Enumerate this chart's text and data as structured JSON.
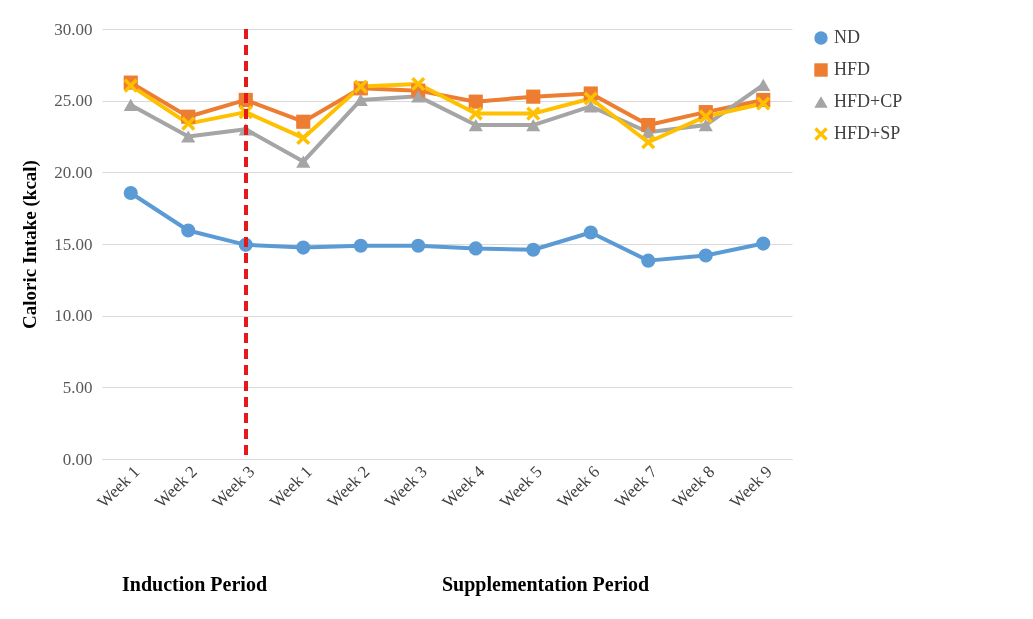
{
  "chart_data": {
    "type": "line",
    "ylabel": "Caloric Intake (kcal)",
    "categories": [
      "Week 1",
      "Week 2",
      "Week 3",
      "Week 1",
      "Week 2",
      "Week 3",
      "Week 4",
      "Week 5",
      "Week 6",
      "Week 7",
      "Week 8",
      "Week 9"
    ],
    "series": [
      {
        "name": "ND",
        "color": "#5b9bd5",
        "marker": "circle",
        "values": [
          18.56,
          15.94,
          14.94,
          14.75,
          14.88,
          14.88,
          14.69,
          14.6,
          15.8,
          13.84,
          14.2,
          15.03
        ]
      },
      {
        "name": "HFD",
        "color": "#ed7d31",
        "marker": "square",
        "values": [
          26.26,
          23.88,
          25.05,
          23.53,
          25.86,
          25.7,
          24.93,
          25.28,
          25.5,
          23.3,
          24.2,
          25.05
        ]
      },
      {
        "name": "HFD+CP",
        "color": "#a5a5a5",
        "marker": "triangle",
        "values": [
          24.7,
          22.5,
          23.0,
          20.75,
          25.05,
          25.3,
          23.3,
          23.3,
          24.6,
          22.8,
          23.3,
          26.1
        ]
      },
      {
        "name": "HFD+SP",
        "color": "#ffc000",
        "marker": "cross",
        "values": [
          26.05,
          23.4,
          24.2,
          22.4,
          25.98,
          26.16,
          24.1,
          24.1,
          25.15,
          22.1,
          23.9,
          24.8
        ]
      }
    ],
    "ylim": [
      0,
      30
    ],
    "yticks": [
      {
        "value": 0,
        "label": "0.00"
      },
      {
        "value": 5,
        "label": "5.00"
      },
      {
        "value": 10,
        "label": "10.00"
      },
      {
        "value": 15,
        "label": "15.00"
      },
      {
        "value": 20,
        "label": "20.00"
      },
      {
        "value": 25,
        "label": "25.00"
      },
      {
        "value": 30,
        "label": "30.00"
      }
    ],
    "grid": "y",
    "legend": "right",
    "ref_lines": [
      {
        "axis": "x",
        "value": "Week 3",
        "color": "#e31a1c",
        "line_style": "dashed"
      }
    ],
    "annotations": [
      "Induction  Period",
      "Supplementation Period"
    ]
  }
}
